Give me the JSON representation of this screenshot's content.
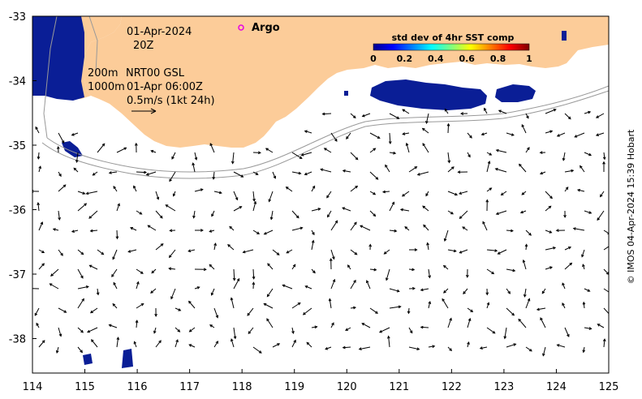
{
  "map": {
    "date_label": "01-Apr-2024",
    "hour_label": "20Z",
    "argo_label": "Argo",
    "contour_200": "200m",
    "contour_1000": "1000m",
    "product_label": "NRT00 GSL",
    "time_label": "01-Apr 06:00Z",
    "arrow_scale_label": "0.5m/s (1kt 24h)",
    "credit": "© IMOS 04-Apr-2024 15:39 Hobart",
    "colorbar": {
      "title": "std dev of 4hr SST comp",
      "ticks": [
        "0",
        "0.2",
        "0.4",
        "0.6",
        "0.8",
        "1"
      ]
    },
    "x_ticks": [
      "114",
      "115",
      "116",
      "117",
      "118",
      "119",
      "120",
      "121",
      "122",
      "123",
      "124",
      "125"
    ],
    "y_ticks": [
      "-33",
      "-34",
      "-35",
      "-36",
      "-37",
      "-38"
    ],
    "colors": {
      "land": "#fccc99",
      "data_blue": "#0a1e96",
      "argo_marker": "#e600e6"
    }
  }
}
